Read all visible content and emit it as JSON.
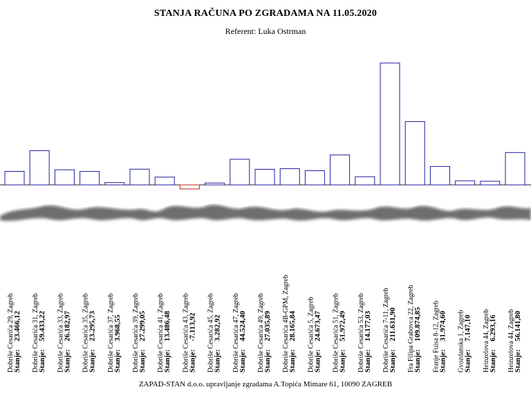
{
  "header": {
    "title": "STANJA RAČUNA PO ZGRADAMA NA 11.05.2020",
    "subtitle": "Referent: Luka Ostrman"
  },
  "footer": {
    "text": "ZAPAD-STAN d.o.o. upravljanje zgradama A.Topića Mimare 61, 10090 ZAGREB"
  },
  "chart_data": {
    "type": "bar",
    "title": "STANJA RAČUNA PO ZGRADAMA NA 11.05.2020",
    "subtitle": "Referent: Luka Ostrman",
    "value_prefix": "Stanje:",
    "categories": [
      "Dobriše Cesarića 29, Zagreb",
      "Dobriše Cesarića 31, Zagreb",
      "Dobriše Cesarića 33, Zagreb",
      "Dobriše Cesarića 35, Zagreb",
      "Dobriše Cesarića 37, Zagreb",
      "Dobriše Cesarića 39, Zagreb",
      "Dobriše Cesarića 41, Zagreb",
      "Dobriše Cesarića 43, Zagreb",
      "Dobriše Cesarića 45, Zagreb",
      "Dobriše Cesarića 47, Zagreb",
      "Dobriše Cesarića 49, Zagreb",
      "Dobriše Cesarića 4B-GPM, Zagreb",
      "Dobriše Cesarića 5, Zagreb",
      "Dobriše Cesarića 51, Zagreb",
      "Dobriše Cesarića 53, Zagreb",
      "Dobriše Cesarića 7-11, Zagreb",
      "Fra Filipa Grabovca 22, Zagreb",
      "Franje Fuisa 8-12, Zagreb",
      "Gvozdanska 1, Zagreb",
      "Heinzelova 44, Zagreb",
      "Heinzelova 44, Zagreb"
    ],
    "value_labels": [
      "23.466,12",
      "59.433,22",
      "26.182,97",
      "23.295,73",
      "3.968,55",
      "27.299,05",
      "13.486,48",
      "-7.113,92",
      "3.282,92",
      "44.524,40",
      "27.035,89",
      "28.165,84",
      "24.673,47",
      "51.972,49",
      "14.177,03",
      "211.631,90",
      "109.874,85",
      "31.974,60",
      "7.147,10",
      "6.293,16",
      "56.141,80"
    ],
    "values": [
      23466.12,
      59433.22,
      26182.97,
      23295.73,
      3968.55,
      27299.05,
      13486.48,
      -7113.92,
      3282.92,
      44524.4,
      27035.89,
      28165.84,
      24673.47,
      51972.49,
      14177.03,
      211631.9,
      109874.85,
      31974.6,
      7147.1,
      6293.16,
      56141.8
    ],
    "colors": {
      "positive": "#1c1ca0",
      "negative": "#c0201c"
    },
    "grid": false,
    "legend": "none"
  }
}
